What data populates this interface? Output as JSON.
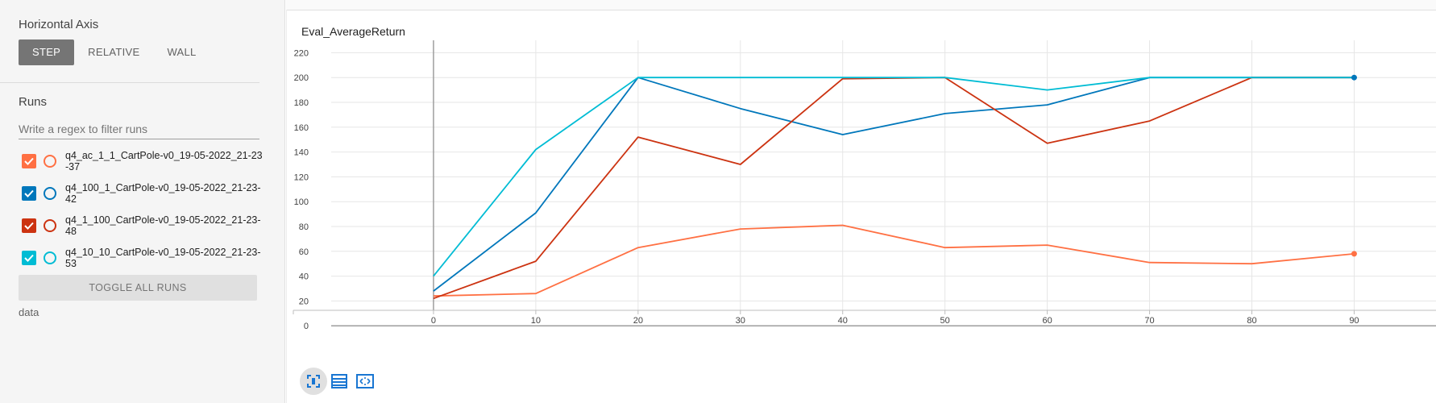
{
  "sidebar": {
    "horizontal_axis_title": "Horizontal Axis",
    "axis_buttons": [
      "STEP",
      "RELATIVE",
      "WALL"
    ],
    "runs_title": "Runs",
    "filter_placeholder": "Write a regex to filter runs",
    "runs": [
      {
        "label": "q4_ac_1_1_CartPole-v0_19-05-2022_21-23-37",
        "color": "#ff7043",
        "checked_bg": "#ff7043",
        "checked": true
      },
      {
        "label": "q4_100_1_CartPole-v0_19-05-2022_21-23-42",
        "color": "#0077bb",
        "checked_bg": "#0077bb",
        "checked": true
      },
      {
        "label": "q4_1_100_CartPole-v0_19-05-2022_21-23-48",
        "color": "#cc3311",
        "checked_bg": "#cc3311",
        "checked": true
      },
      {
        "label": "q4_10_10_CartPole-v0_19-05-2022_21-23-53",
        "color": "#00bcd4",
        "checked_bg": "#00bcd4",
        "checked": true
      }
    ],
    "toggle_all_label": "TOGGLE ALL RUNS",
    "data_label": "data"
  },
  "main": {
    "chart_title": "Eval_AverageReturn",
    "tools": [
      "fit-domain-icon",
      "data-table-icon",
      "expand-icon"
    ]
  },
  "chart_data": {
    "type": "line",
    "title": "Eval_AverageReturn",
    "xlabel": "",
    "ylabel": "",
    "xlim": [
      -10,
      98
    ],
    "ylim": [
      -20,
      230
    ],
    "x_ticks": [
      0,
      10,
      20,
      30,
      40,
      50,
      60,
      70,
      80,
      90
    ],
    "y_ticks": [
      0,
      20,
      40,
      60,
      80,
      100,
      120,
      140,
      160,
      180,
      200,
      220
    ],
    "grid": true,
    "series": [
      {
        "run": "q4_ac_1_1_CartPole-v0_19-05-2022_21-23-37",
        "color": "#ff7043",
        "x": [
          0,
          10,
          20,
          30,
          40,
          50,
          60,
          70,
          80,
          90
        ],
        "y": [
          24,
          26,
          63,
          78,
          81,
          63,
          65,
          51,
          50,
          58
        ]
      },
      {
        "run": "q4_100_1_CartPole-v0_19-05-2022_21-23-42",
        "color": "#0077bb",
        "x": [
          0,
          10,
          20,
          30,
          40,
          50,
          60,
          70,
          80,
          90
        ],
        "y": [
          28,
          91,
          200,
          175,
          154,
          171,
          178,
          200,
          200,
          200
        ]
      },
      {
        "run": "q4_1_100_CartPole-v0_19-05-2022_21-23-48",
        "color": "#cc3311",
        "x": [
          0,
          10,
          20,
          30,
          40,
          50,
          60,
          70,
          80,
          90
        ],
        "y": [
          22,
          52,
          152,
          130,
          199,
          200,
          147,
          165,
          200,
          200
        ]
      },
      {
        "run": "q4_10_10_CartPole-v0_19-05-2022_21-23-53",
        "color": "#00bcd4",
        "x": [
          0,
          10,
          20,
          30,
          40,
          50,
          60,
          70,
          80,
          90
        ],
        "y": [
          40,
          142,
          200,
          200,
          200,
          200,
          190,
          200,
          200,
          200
        ]
      }
    ]
  }
}
